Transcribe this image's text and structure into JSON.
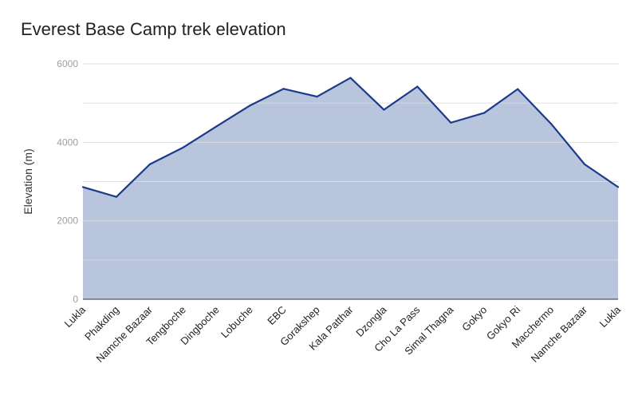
{
  "chart_data": {
    "type": "area",
    "title": "Everest Base Camp trek elevation",
    "xlabel": "",
    "ylabel": "Elevation (m)",
    "ylim": [
      0,
      6000
    ],
    "yticks": [
      0,
      2000,
      4000,
      6000
    ],
    "grid": true,
    "categories": [
      "Lukla",
      "Phakding",
      "Namche Bazaar",
      "Tengboche",
      "Dingboche",
      "Lobuche",
      "EBC",
      "Gorakshep",
      "Kala Patthar",
      "Dzongla",
      "Cho La Pass",
      "Simal Thagna",
      "Gokyo",
      "Gokyo Ri",
      "Macchermo",
      "Namche Bazaar",
      "Lukla"
    ],
    "series": [
      {
        "values": [
          2860,
          2610,
          3440,
          3870,
          4410,
          4940,
          5364,
          5164,
          5643,
          4830,
          5420,
          4500,
          4750,
          5357,
          4470,
          3440,
          2860
        ]
      }
    ],
    "colors": {
      "line": "#1b3a8a",
      "fill": "#b9c5dc",
      "gridline": "#dcdcdc",
      "gridline_inner": "#9fa9bd"
    }
  }
}
